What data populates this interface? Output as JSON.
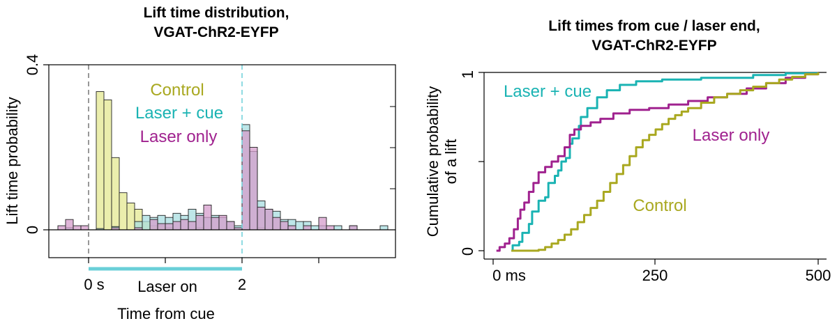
{
  "colors": {
    "control": "#a9a820",
    "laser_cue": "#1ab3b3",
    "laser_only": "#a0228f",
    "control_fill": "#e9eca4",
    "laser_cue_fill": "#a8dde0",
    "laser_only_fill": "#d49ccb",
    "overlap_fill": "#8595c8",
    "laser_bar": "#6acfd8",
    "cue_line": "#777777"
  },
  "chart_data": [
    {
      "type": "histogram",
      "title_line1": "Lift time distribution,",
      "title_line2": "VGAT-ChR2-EYFP",
      "xlabel": "Time from cue",
      "ylabel": "Lift time probability",
      "xlim": [
        -0.5,
        4.0
      ],
      "ylim": [
        -0.05,
        0.4
      ],
      "yticks": [
        0,
        0.4
      ],
      "ytick_labels": [
        "0",
        "0.4"
      ],
      "xtick_labels": [
        "0 s",
        "2"
      ],
      "laser_label": "Laser on",
      "laser_interval": [
        0,
        2
      ],
      "bin_width": 0.1,
      "legend": [
        "Control",
        "Laser + cue",
        "Laser only"
      ],
      "series": [
        {
          "name": "Control",
          "bins": [
            {
              "x0": 0.0,
              "v": 0.0
            },
            {
              "x0": 0.1,
              "v": 0.335
            },
            {
              "x0": 0.2,
              "v": 0.315
            },
            {
              "x0": 0.3,
              "v": 0.175
            },
            {
              "x0": 0.4,
              "v": 0.09
            },
            {
              "x0": 0.5,
              "v": 0.065
            },
            {
              "x0": 0.6,
              "v": 0.05
            },
            {
              "x0": 0.7,
              "v": 0.02
            },
            {
              "x0": 0.8,
              "v": 0.01
            },
            {
              "x0": 0.9,
              "v": 0.01
            },
            {
              "x0": 1.0,
              "v": 0.005
            },
            {
              "x0": 1.4,
              "v": 0.005
            },
            {
              "x0": 2.2,
              "v": 0.005
            }
          ]
        },
        {
          "name": "Laser + cue",
          "bins": [
            {
              "x0": -0.3,
              "v": 0.005
            },
            {
              "x0": 0.1,
              "v": 0.003
            },
            {
              "x0": 0.3,
              "v": 0.008
            },
            {
              "x0": 0.6,
              "v": 0.02
            },
            {
              "x0": 0.7,
              "v": 0.035
            },
            {
              "x0": 0.8,
              "v": 0.03
            },
            {
              "x0": 0.9,
              "v": 0.035
            },
            {
              "x0": 1.0,
              "v": 0.03
            },
            {
              "x0": 1.1,
              "v": 0.04
            },
            {
              "x0": 1.2,
              "v": 0.035
            },
            {
              "x0": 1.3,
              "v": 0.05
            },
            {
              "x0": 1.4,
              "v": 0.04
            },
            {
              "x0": 1.5,
              "v": 0.03
            },
            {
              "x0": 1.6,
              "v": 0.035
            },
            {
              "x0": 1.7,
              "v": 0.03
            },
            {
              "x0": 1.8,
              "v": 0.02
            },
            {
              "x0": 1.9,
              "v": 0.01
            },
            {
              "x0": 2.0,
              "v": 0.255
            },
            {
              "x0": 2.1,
              "v": 0.19
            },
            {
              "x0": 2.2,
              "v": 0.07
            },
            {
              "x0": 2.3,
              "v": 0.05
            },
            {
              "x0": 2.4,
              "v": 0.045
            },
            {
              "x0": 2.5,
              "v": 0.025
            },
            {
              "x0": 2.6,
              "v": 0.025
            },
            {
              "x0": 2.7,
              "v": 0.02
            },
            {
              "x0": 2.8,
              "v": 0.02
            },
            {
              "x0": 2.9,
              "v": 0.01
            },
            {
              "x0": 3.0,
              "v": 0.01
            },
            {
              "x0": 3.2,
              "v": 0.01
            },
            {
              "x0": 3.4,
              "v": 0.01
            },
            {
              "x0": 3.8,
              "v": 0.01
            }
          ]
        },
        {
          "name": "Laser only",
          "bins": [
            {
              "x0": -0.4,
              "v": 0.01
            },
            {
              "x0": -0.3,
              "v": 0.025
            },
            {
              "x0": -0.2,
              "v": 0.01
            },
            {
              "x0": -0.1,
              "v": 0.01
            },
            {
              "x0": 0.3,
              "v": 0.005
            },
            {
              "x0": 0.6,
              "v": 0.005
            },
            {
              "x0": 0.8,
              "v": 0.025
            },
            {
              "x0": 0.9,
              "v": 0.015
            },
            {
              "x0": 1.0,
              "v": 0.015
            },
            {
              "x0": 1.1,
              "v": 0.02
            },
            {
              "x0": 1.2,
              "v": 0.025
            },
            {
              "x0": 1.3,
              "v": 0.02
            },
            {
              "x0": 1.4,
              "v": 0.035
            },
            {
              "x0": 1.5,
              "v": 0.06
            },
            {
              "x0": 1.6,
              "v": 0.03
            },
            {
              "x0": 1.7,
              "v": 0.035
            },
            {
              "x0": 1.8,
              "v": 0.02
            },
            {
              "x0": 1.9,
              "v": 0.005
            },
            {
              "x0": 2.0,
              "v": 0.24
            },
            {
              "x0": 2.1,
              "v": 0.2
            },
            {
              "x0": 2.2,
              "v": 0.055
            },
            {
              "x0": 2.3,
              "v": 0.05
            },
            {
              "x0": 2.4,
              "v": 0.03
            },
            {
              "x0": 2.5,
              "v": 0.02
            },
            {
              "x0": 2.6,
              "v": 0.01
            },
            {
              "x0": 2.8,
              "v": 0.01
            },
            {
              "x0": 3.0,
              "v": 0.03
            },
            {
              "x0": 3.1,
              "v": 0.01
            },
            {
              "x0": 3.4,
              "v": 0.01
            }
          ]
        }
      ]
    },
    {
      "type": "line",
      "title_line1": "Lift times from cue / laser end,",
      "title_line2": "VGAT-ChR2-EYFP",
      "xlabel": "",
      "ylabel_line1": "Cumulative probability",
      "ylabel_line2": "of a lift",
      "xlim": [
        -10,
        510
      ],
      "ylim": [
        -0.03,
        1.03
      ],
      "xtick_labels": [
        "0 ms",
        "250",
        "500"
      ],
      "xticks": [
        0,
        250,
        500
      ],
      "ytick_labels": [
        "0",
        "1"
      ],
      "yticks": [
        0,
        1
      ],
      "series": [
        {
          "name": "Laser + cue",
          "x": [
            28,
            30,
            40,
            45,
            55,
            60,
            70,
            80,
            85,
            95,
            100,
            105,
            112,
            118,
            122,
            132,
            135,
            145,
            160,
            175,
            195,
            220,
            260,
            320,
            400,
            450,
            500
          ],
          "y": [
            0.0,
            0.03,
            0.05,
            0.1,
            0.15,
            0.22,
            0.28,
            0.3,
            0.38,
            0.42,
            0.45,
            0.5,
            0.52,
            0.6,
            0.63,
            0.7,
            0.75,
            0.8,
            0.86,
            0.9,
            0.93,
            0.95,
            0.96,
            0.97,
            0.985,
            0.995,
            1.0
          ]
        },
        {
          "name": "Laser only",
          "x": [
            5,
            10,
            18,
            25,
            32,
            38,
            42,
            48,
            55,
            62,
            70,
            80,
            90,
            100,
            110,
            118,
            125,
            135,
            150,
            165,
            185,
            210,
            240,
            270,
            300,
            330,
            360,
            390,
            420,
            450,
            480,
            500
          ],
          "y": [
            0.0,
            0.02,
            0.04,
            0.07,
            0.12,
            0.18,
            0.23,
            0.27,
            0.33,
            0.38,
            0.44,
            0.47,
            0.5,
            0.53,
            0.58,
            0.65,
            0.68,
            0.7,
            0.72,
            0.74,
            0.77,
            0.79,
            0.8,
            0.82,
            0.84,
            0.86,
            0.88,
            0.91,
            0.94,
            0.97,
            0.99,
            1.0
          ]
        },
        {
          "name": "Control",
          "x": [
            28,
            50,
            70,
            80,
            90,
            100,
            110,
            120,
            130,
            140,
            150,
            160,
            170,
            180,
            190,
            200,
            210,
            220,
            230,
            240,
            250,
            260,
            270,
            280,
            290,
            300,
            320,
            340,
            360,
            380,
            400,
            420,
            440,
            460,
            480,
            500
          ],
          "y": [
            0.0,
            0.0,
            0.005,
            0.02,
            0.04,
            0.06,
            0.09,
            0.12,
            0.16,
            0.2,
            0.24,
            0.28,
            0.33,
            0.38,
            0.43,
            0.48,
            0.53,
            0.58,
            0.62,
            0.65,
            0.68,
            0.71,
            0.74,
            0.76,
            0.78,
            0.8,
            0.83,
            0.86,
            0.88,
            0.9,
            0.92,
            0.94,
            0.96,
            0.975,
            0.99,
            1.0
          ]
        }
      ],
      "legend": [
        "Laser + cue",
        "Laser only",
        "Control"
      ]
    }
  ]
}
